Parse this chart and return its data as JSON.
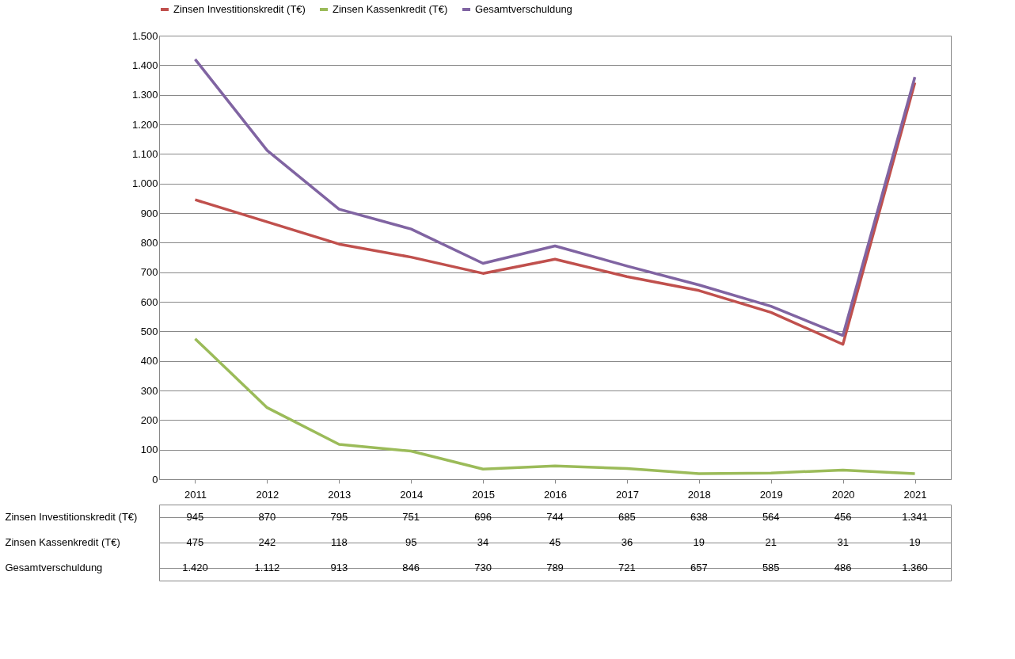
{
  "chart_data": {
    "type": "line",
    "categories": [
      "2011",
      "2012",
      "2013",
      "2014",
      "2015",
      "2016",
      "2017",
      "2018",
      "2019",
      "2020",
      "2021"
    ],
    "series": [
      {
        "name": "Zinsen Investitionskredit (T€)",
        "color": "#c0504d",
        "values": [
          945,
          870,
          795,
          751,
          696,
          744,
          685,
          638,
          564,
          456,
          1341
        ],
        "value_labels": [
          "945",
          "870",
          "795",
          "751",
          "696",
          "744",
          "685",
          "638",
          "564",
          "456",
          "1.341"
        ]
      },
      {
        "name": "Zinsen Kassenkredit (T€)",
        "color": "#9bbb59",
        "values": [
          475,
          242,
          118,
          95,
          34,
          45,
          36,
          19,
          21,
          31,
          19
        ],
        "value_labels": [
          "475",
          "242",
          "118",
          "95",
          "34",
          "45",
          "36",
          "19",
          "21",
          "31",
          "19"
        ]
      },
      {
        "name": "Gesamtverschuldung",
        "color": "#8064a2",
        "values": [
          1420,
          1112,
          913,
          846,
          730,
          789,
          721,
          657,
          585,
          486,
          1360
        ],
        "value_labels": [
          "1.420",
          "1.112",
          "913",
          "846",
          "730",
          "789",
          "721",
          "657",
          "585",
          "486",
          "1.360"
        ]
      }
    ],
    "ylim": [
      0,
      1500
    ],
    "yticks": [
      0,
      100,
      200,
      300,
      400,
      500,
      600,
      700,
      800,
      900,
      {
        "value": 1000,
        "label": "1.000"
      },
      {
        "value": 1100,
        "label": "1.100"
      },
      {
        "value": 1200,
        "label": "1.200"
      },
      {
        "value": 1300,
        "label": "1.300"
      },
      {
        "value": 1400,
        "label": "1.400"
      },
      {
        "value": 1500,
        "label": "1.500"
      }
    ],
    "grid": "y",
    "legend": "top",
    "marker": "none",
    "line_style": "solid"
  }
}
